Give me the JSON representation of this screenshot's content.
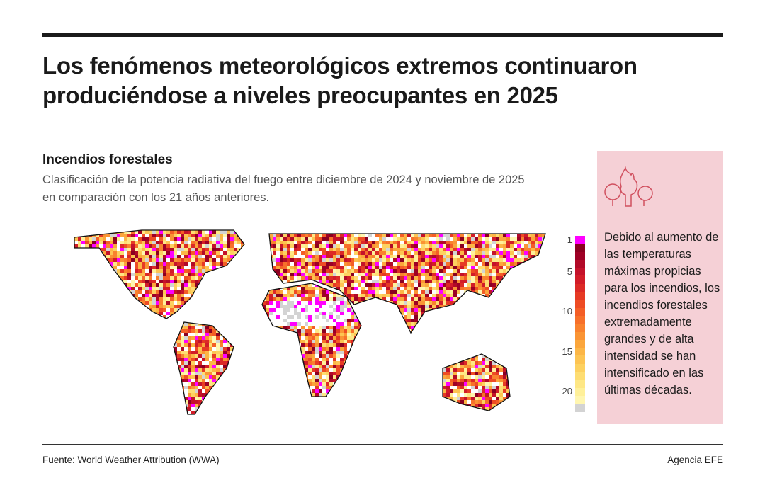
{
  "title": "Los fenómenos meteorológicos extremos continuaron produciéndose a niveles preocupantes en 2025",
  "section": {
    "heading": "Incendios forestales",
    "description": "Clasificación de la potencia radiativa del fuego entre diciembre de 2024 y noviembre de 2025 en comparación con los 21 años anteriores."
  },
  "legend": {
    "ticks": [
      "1",
      "5",
      "10",
      "15",
      "20"
    ],
    "colors": [
      "#ff00ff",
      "#8b0020",
      "#9e0025",
      "#b20a28",
      "#c4122a",
      "#d21c28",
      "#dc2a26",
      "#e63a24",
      "#ee4c24",
      "#f45e26",
      "#f7702a",
      "#f9822e",
      "#fa9434",
      "#fba63c",
      "#fcb646",
      "#fdc452",
      "#fdd160",
      "#fedd72",
      "#fee785",
      "#fff099",
      "#fff6b0",
      "#d3d3d3"
    ]
  },
  "callout": {
    "icon": "forest-fire-icon",
    "text": "Debido al aumento de las temperaturas máximas propicias para los incendios, los incendios forestales extremadamente grandes y de alta intensidad se han intensificado en las últimas décadas.",
    "background": "#f5d0d6"
  },
  "footer": {
    "source": "Fuente: World Weather Attribution (WWA)",
    "credit": "Agencia EFE"
  }
}
